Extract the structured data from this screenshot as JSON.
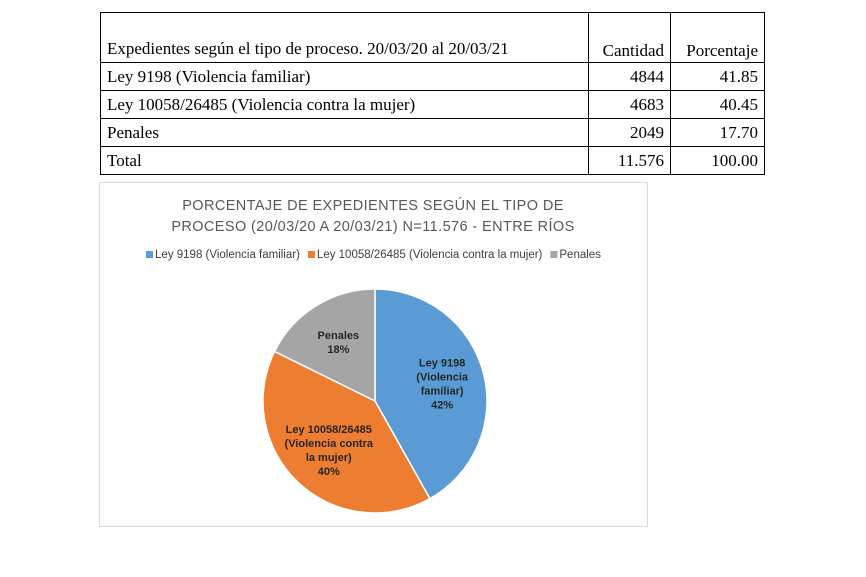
{
  "table": {
    "header": [
      "Expedientes según el tipo de proceso. 20/03/20 al 20/03/21",
      "Cantidad",
      "Porcentaje"
    ],
    "rows": [
      [
        "Ley 9198 (Violencia familiar)",
        "4844",
        "41.85"
      ],
      [
        "Ley 10058/26485 (Violencia contra la mujer)",
        "4683",
        "40.45"
      ],
      [
        "Penales",
        "2049",
        "17.70"
      ],
      [
        "Total",
        "11.576",
        "100.00"
      ]
    ]
  },
  "chart_data": {
    "type": "pie",
    "title_lines": [
      "PORCENTAJE DE EXPEDIENTES SEGÚN EL TIPO DE",
      "PROCESO (20/03/20 A 20/03/21) N=11.576 - ENTRE RÍOS"
    ],
    "categories": [
      "Ley 9198 (Violencia familiar)",
      "Ley 10058/26485 (Violencia contra la mujer)",
      "Penales"
    ],
    "values": [
      41.85,
      40.45,
      17.7
    ],
    "colors": [
      "#5B9BD5",
      "#ED7D31",
      "#A5A5A5"
    ],
    "slice_labels": [
      [
        "Ley 9198",
        "(Violencia",
        "familiar)",
        "42%"
      ],
      [
        "Ley 10058/26485",
        "(Violencia contra",
        "la mujer)",
        "40%"
      ],
      [
        "Penales",
        "18%"
      ]
    ],
    "legend_placement": "top",
    "start_angle_deg": 0,
    "direction": "clockwise"
  }
}
